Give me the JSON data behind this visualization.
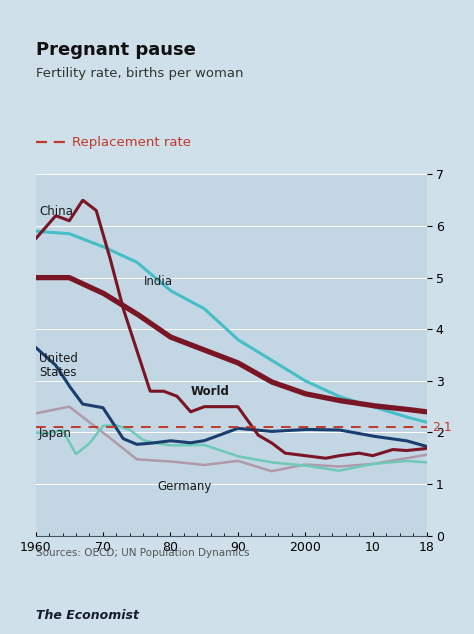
{
  "title": "Pregnant pause",
  "subtitle": "Fertility rate, births per woman",
  "legend_label": "Replacement rate",
  "source": "Sources: OECD; UN Population Dynamics",
  "economist_label": "The Economist",
  "replacement_rate": 2.1,
  "replacement_rate_label": "2.1",
  "bg_color": "#cfe0ea",
  "plot_bg_color": "#c2d6e3",
  "replacement_color": "#c0392b",
  "ylim": [
    0,
    7
  ],
  "yticks": [
    0,
    1,
    2,
    3,
    4,
    5,
    6,
    7
  ],
  "xlabel_ticks": [
    "1960",
    "70",
    "80",
    "90",
    "2000",
    "10",
    "18"
  ],
  "xlabel_values": [
    1960,
    1970,
    1980,
    1990,
    2000,
    2010,
    2018
  ],
  "series": {
    "China": {
      "color": "#7a1525",
      "linewidth": 2.2,
      "bold_label": false,
      "years": [
        1960,
        1963,
        1965,
        1967,
        1969,
        1971,
        1973,
        1975,
        1977,
        1979,
        1981,
        1983,
        1985,
        1987,
        1990,
        1993,
        1995,
        1997,
        2000,
        2003,
        2005,
        2008,
        2010,
        2013,
        2015,
        2018
      ],
      "values": [
        5.75,
        6.2,
        6.1,
        6.5,
        6.3,
        5.4,
        4.4,
        3.6,
        2.8,
        2.8,
        2.7,
        2.4,
        2.5,
        2.5,
        2.5,
        1.95,
        1.8,
        1.6,
        1.55,
        1.5,
        1.55,
        1.6,
        1.55,
        1.67,
        1.65,
        1.69
      ]
    },
    "India": {
      "color": "#45bec8",
      "linewidth": 2.2,
      "bold_label": false,
      "years": [
        1960,
        1965,
        1970,
        1975,
        1980,
        1985,
        1990,
        1995,
        2000,
        2005,
        2010,
        2015,
        2018
      ],
      "values": [
        5.9,
        5.85,
        5.6,
        5.3,
        4.75,
        4.4,
        3.8,
        3.4,
        3.0,
        2.7,
        2.5,
        2.3,
        2.2
      ]
    },
    "United States": {
      "color": "#1a3f6f",
      "linewidth": 2.2,
      "bold_label": false,
      "years": [
        1960,
        1963,
        1965,
        1967,
        1970,
        1973,
        1975,
        1977,
        1980,
        1983,
        1985,
        1990,
        1995,
        2000,
        2005,
        2010,
        2015,
        2018
      ],
      "values": [
        3.65,
        3.3,
        2.9,
        2.55,
        2.48,
        1.88,
        1.77,
        1.79,
        1.84,
        1.8,
        1.84,
        2.08,
        2.02,
        2.06,
        2.05,
        1.93,
        1.84,
        1.73
      ]
    },
    "World": {
      "color": "#7a1525",
      "linewidth": 3.0,
      "bold_label": true,
      "years": [
        1960,
        1965,
        1970,
        1975,
        1980,
        1985,
        1990,
        1995,
        2000,
        2005,
        2010,
        2015,
        2018
      ],
      "values": [
        5.0,
        5.0,
        4.7,
        4.3,
        3.85,
        3.6,
        3.35,
        2.98,
        2.75,
        2.62,
        2.52,
        2.45,
        2.4
      ]
    },
    "Germany": {
      "color": "#b09aaa",
      "linewidth": 1.8,
      "bold_label": false,
      "years": [
        1960,
        1965,
        1970,
        1975,
        1980,
        1985,
        1990,
        1995,
        2000,
        2005,
        2010,
        2015,
        2018
      ],
      "values": [
        2.37,
        2.5,
        2.0,
        1.48,
        1.44,
        1.37,
        1.45,
        1.25,
        1.38,
        1.34,
        1.39,
        1.5,
        1.57
      ]
    },
    "Japan": {
      "color": "#6ec9b8",
      "linewidth": 1.8,
      "bold_label": false,
      "years": [
        1960,
        1962,
        1964,
        1966,
        1968,
        1970,
        1972,
        1974,
        1976,
        1978,
        1980,
        1985,
        1990,
        1995,
        2000,
        2005,
        2010,
        2015,
        2018
      ],
      "values": [
        2.0,
        1.98,
        2.05,
        1.58,
        1.79,
        2.13,
        2.14,
        2.05,
        1.85,
        1.79,
        1.75,
        1.76,
        1.54,
        1.42,
        1.36,
        1.26,
        1.39,
        1.45,
        1.42
      ]
    }
  }
}
